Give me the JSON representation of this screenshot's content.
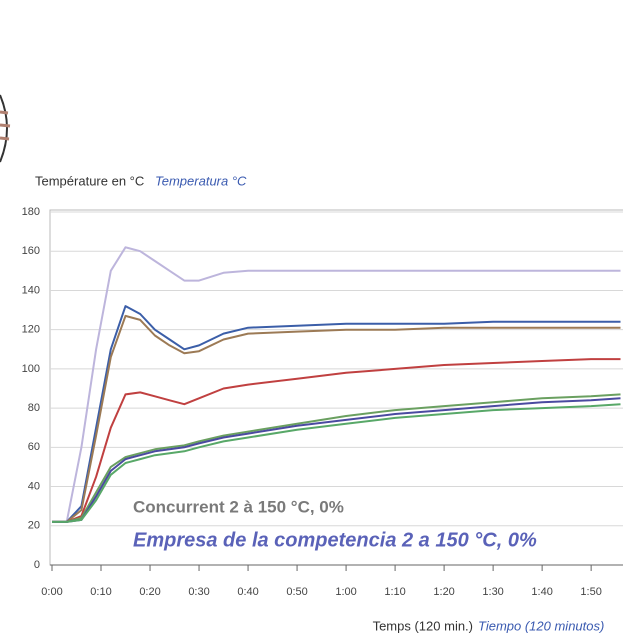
{
  "chart_data": {
    "type": "line",
    "y_label": "Température en °C",
    "y_label_es": "Temperatura °C",
    "x_label": "Temps (120 min.)",
    "x_label_es": "Tiempo (120 minutos)",
    "annotation": "Concurrent 2 à 150 °C, 0%",
    "annotation_es": "Empresa de la competencia 2 a 150 °C, 0%",
    "x": [
      0,
      3,
      6,
      9,
      12,
      15,
      18,
      21,
      24,
      27,
      30,
      35,
      40,
      50,
      60,
      70,
      80,
      90,
      100,
      110,
      116
    ],
    "series": [
      {
        "color": "#bdb5dc",
        "values": [
          22,
          22,
          60,
          110,
          150,
          162,
          160,
          155,
          150,
          145,
          145,
          149,
          150,
          150,
          150,
          150,
          150,
          150,
          150,
          150,
          150
        ]
      },
      {
        "color": "#3b5ea8",
        "values": [
          22,
          22,
          30,
          70,
          110,
          132,
          128,
          120,
          115,
          110,
          112,
          118,
          121,
          122,
          123,
          123,
          123,
          124,
          124,
          124,
          124
        ]
      },
      {
        "color": "#9c7a55",
        "values": [
          22,
          22,
          28,
          66,
          106,
          127,
          125,
          117,
          112,
          108,
          109,
          115,
          118,
          119,
          120,
          120,
          121,
          121,
          121,
          121,
          121
        ]
      },
      {
        "color": "#c04040",
        "values": [
          22,
          22,
          25,
          45,
          70,
          87,
          88,
          86,
          84,
          82,
          85,
          90,
          92,
          95,
          98,
          100,
          102,
          103,
          104,
          105,
          105
        ]
      },
      {
        "color": "#6aa060",
        "values": [
          22,
          22,
          24,
          37,
          50,
          55,
          57,
          59,
          60,
          61,
          63,
          66,
          68,
          72,
          76,
          79,
          81,
          83,
          85,
          86,
          87
        ]
      },
      {
        "color": "#4a4aa0",
        "values": [
          22,
          22,
          23,
          35,
          48,
          54,
          56,
          58,
          59,
          60,
          62,
          65,
          67,
          71,
          74,
          77,
          79,
          81,
          83,
          84,
          85
        ]
      },
      {
        "color": "#58a868",
        "values": [
          22,
          22,
          23,
          33,
          46,
          52,
          54,
          56,
          57,
          58,
          60,
          63,
          65,
          69,
          72,
          75,
          77,
          79,
          80,
          81,
          82
        ]
      }
    ],
    "xlim": [
      0,
      116.5
    ],
    "ylim": [
      0,
      180
    ],
    "yticks": [
      0,
      20,
      40,
      60,
      80,
      100,
      120,
      140,
      160,
      180
    ],
    "xticks": [
      {
        "value": 0,
        "label": "0:00"
      },
      {
        "value": 10,
        "label": "0:10"
      },
      {
        "value": 20,
        "label": "0:20"
      },
      {
        "value": 30,
        "label": "0:30"
      },
      {
        "value": 40,
        "label": "0:40"
      },
      {
        "value": 50,
        "label": "0:50"
      },
      {
        "value": 60,
        "label": "1:00"
      },
      {
        "value": 70,
        "label": "1:10"
      },
      {
        "value": 80,
        "label": "1:20"
      },
      {
        "value": 90,
        "label": "1:30"
      },
      {
        "value": 100,
        "label": "1:40"
      },
      {
        "value": 110,
        "label": "1:50"
      }
    ],
    "grid": true
  }
}
